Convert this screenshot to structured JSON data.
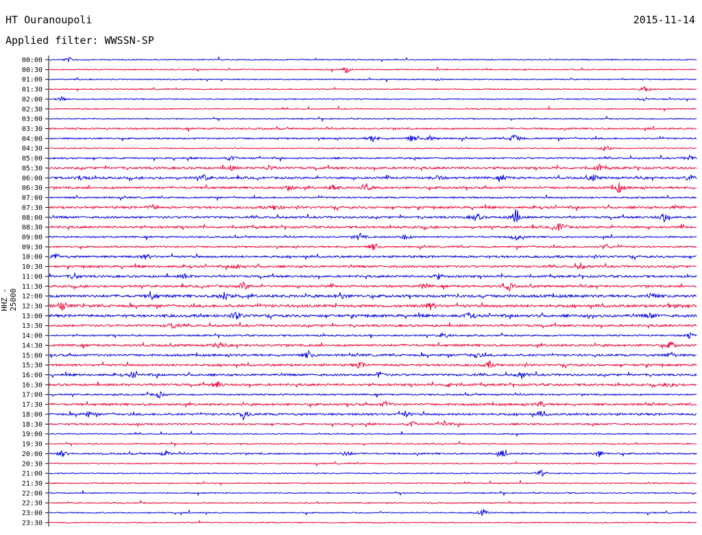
{
  "header": {
    "station": "HT Ouranoupoli",
    "date": "2015-11-14",
    "filter": "Applied filter: WWSSN-SP"
  },
  "colors": {
    "even_rows": "#0000dd",
    "odd_rows": "#ee0033"
  },
  "chart_data": {
    "type": "line",
    "ylabel": "HHZ - 25000",
    "row_labels": [
      "00:00",
      "00:30",
      "01:00",
      "01:30",
      "02:00",
      "02:30",
      "03:00",
      "03:30",
      "04:00",
      "04:30",
      "05:00",
      "05:30",
      "06:00",
      "06:30",
      "07:00",
      "07:30",
      "08:00",
      "08:30",
      "09:00",
      "09:30",
      "10:00",
      "10:30",
      "11:00",
      "11:30",
      "12:00",
      "12:30",
      "13:00",
      "13:30",
      "14:00",
      "14:30",
      "15:00",
      "15:30",
      "16:00",
      "16:30",
      "17:00",
      "17:30",
      "18:00",
      "18:30",
      "19:00",
      "19:30",
      "20:00",
      "20:30",
      "21:00",
      "21:30",
      "22:00",
      "22:30",
      "23:00",
      "23:30"
    ],
    "row_duration_minutes": 30,
    "row_activity": [
      1,
      1,
      1,
      1,
      1,
      1,
      1,
      2,
      2,
      1,
      2,
      3,
      3,
      3,
      2,
      3,
      3,
      3,
      2,
      2,
      3,
      3,
      3,
      3,
      4,
      4,
      4,
      3,
      2,
      3,
      3,
      3,
      3,
      3,
      2,
      3,
      3,
      2,
      1,
      1,
      2,
      1,
      1,
      1,
      1,
      1,
      1,
      1
    ],
    "events": [
      {
        "row": 0,
        "t": 0.03,
        "amp": 1.0
      },
      {
        "row": 1,
        "t": 0.46,
        "amp": 2.0
      },
      {
        "row": 2,
        "t": 0.6,
        "amp": 0.8
      },
      {
        "row": 3,
        "t": 0.92,
        "amp": 1.5
      },
      {
        "row": 4,
        "t": 0.02,
        "amp": 1.0
      },
      {
        "row": 4,
        "t": 0.92,
        "amp": 1.0
      },
      {
        "row": 8,
        "t": 0.5,
        "amp": 2.0
      },
      {
        "row": 8,
        "t": 0.56,
        "amp": 1.6
      },
      {
        "row": 8,
        "t": 0.59,
        "amp": 1.6
      },
      {
        "row": 8,
        "t": 0.72,
        "amp": 3.0
      },
      {
        "row": 9,
        "t": 0.86,
        "amp": 1.5
      },
      {
        "row": 10,
        "t": 0.28,
        "amp": 1.2
      },
      {
        "row": 10,
        "t": 0.99,
        "amp": 1.5
      },
      {
        "row": 11,
        "t": 0.28,
        "amp": 1.2
      },
      {
        "row": 11,
        "t": 0.34,
        "amp": 1.3
      },
      {
        "row": 11,
        "t": 0.85,
        "amp": 1.5
      },
      {
        "row": 12,
        "t": 0.05,
        "amp": 1.5
      },
      {
        "row": 12,
        "t": 0.24,
        "amp": 1.5
      },
      {
        "row": 12,
        "t": 0.6,
        "amp": 1.2
      },
      {
        "row": 12,
        "t": 0.7,
        "amp": 1.4
      },
      {
        "row": 12,
        "t": 0.84,
        "amp": 1.6
      },
      {
        "row": 12,
        "t": 0.99,
        "amp": 1.6
      },
      {
        "row": 13,
        "t": 0.37,
        "amp": 1.5
      },
      {
        "row": 13,
        "t": 0.44,
        "amp": 1.6
      },
      {
        "row": 13,
        "t": 0.49,
        "amp": 1.6
      },
      {
        "row": 13,
        "t": 0.88,
        "amp": 2.2
      },
      {
        "row": 15,
        "t": 0.16,
        "amp": 1.4
      },
      {
        "row": 15,
        "t": 0.35,
        "amp": 1.5
      },
      {
        "row": 15,
        "t": 0.97,
        "amp": 1.2
      },
      {
        "row": 16,
        "t": 0.66,
        "amp": 2.0
      },
      {
        "row": 16,
        "t": 0.72,
        "amp": 4.0
      },
      {
        "row": 16,
        "t": 0.95,
        "amp": 2.2
      },
      {
        "row": 17,
        "t": 0.79,
        "amp": 3.0
      },
      {
        "row": 18,
        "t": 0.48,
        "amp": 1.8
      },
      {
        "row": 18,
        "t": 0.55,
        "amp": 1.2
      },
      {
        "row": 18,
        "t": 0.72,
        "amp": 1.8
      },
      {
        "row": 19,
        "t": 0.5,
        "amp": 1.4
      },
      {
        "row": 19,
        "t": 0.86,
        "amp": 1.3
      },
      {
        "row": 20,
        "t": 0.01,
        "amp": 1.6
      },
      {
        "row": 20,
        "t": 0.15,
        "amp": 1.2
      },
      {
        "row": 21,
        "t": 0.29,
        "amp": 1.4
      },
      {
        "row": 21,
        "t": 0.82,
        "amp": 1.5
      },
      {
        "row": 22,
        "t": 0.04,
        "amp": 1.3
      },
      {
        "row": 22,
        "t": 0.21,
        "amp": 1.2
      },
      {
        "row": 22,
        "t": 0.6,
        "amp": 1.4
      },
      {
        "row": 23,
        "t": 0.3,
        "amp": 2.0
      },
      {
        "row": 23,
        "t": 0.58,
        "amp": 1.3
      },
      {
        "row": 23,
        "t": 0.71,
        "amp": 2.0
      },
      {
        "row": 24,
        "t": 0.16,
        "amp": 2.0
      },
      {
        "row": 24,
        "t": 0.27,
        "amp": 2.6
      },
      {
        "row": 24,
        "t": 0.45,
        "amp": 1.6
      },
      {
        "row": 24,
        "t": 0.93,
        "amp": 1.5
      },
      {
        "row": 25,
        "t": 0.02,
        "amp": 1.6
      },
      {
        "row": 25,
        "t": 0.59,
        "amp": 1.7
      },
      {
        "row": 25,
        "t": 0.96,
        "amp": 1.2
      },
      {
        "row": 26,
        "t": 0.29,
        "amp": 1.8
      },
      {
        "row": 26,
        "t": 0.65,
        "amp": 1.6
      },
      {
        "row": 26,
        "t": 0.93,
        "amp": 1.4
      },
      {
        "row": 27,
        "t": 0.19,
        "amp": 1.7
      },
      {
        "row": 28,
        "t": 0.61,
        "amp": 1.4
      },
      {
        "row": 28,
        "t": 0.99,
        "amp": 1.5
      },
      {
        "row": 29,
        "t": 0.26,
        "amp": 1.6
      },
      {
        "row": 29,
        "t": 0.96,
        "amp": 1.8
      },
      {
        "row": 30,
        "t": 0.4,
        "amp": 1.6
      },
      {
        "row": 30,
        "t": 0.66,
        "amp": 1.6
      },
      {
        "row": 30,
        "t": 0.96,
        "amp": 1.5
      },
      {
        "row": 31,
        "t": 0.48,
        "amp": 1.5
      },
      {
        "row": 31,
        "t": 0.68,
        "amp": 1.5
      },
      {
        "row": 32,
        "t": 0.13,
        "amp": 1.5
      },
      {
        "row": 32,
        "t": 0.51,
        "amp": 1.4
      },
      {
        "row": 32,
        "t": 0.73,
        "amp": 1.6
      },
      {
        "row": 33,
        "t": 0.26,
        "amp": 1.5
      },
      {
        "row": 33,
        "t": 0.62,
        "amp": 1.4
      },
      {
        "row": 33,
        "t": 0.96,
        "amp": 1.4
      },
      {
        "row": 34,
        "t": 0.17,
        "amp": 1.5
      },
      {
        "row": 35,
        "t": 0.52,
        "amp": 1.2
      },
      {
        "row": 35,
        "t": 0.76,
        "amp": 1.4
      },
      {
        "row": 36,
        "t": 0.06,
        "amp": 1.4
      },
      {
        "row": 36,
        "t": 0.3,
        "amp": 2.0
      },
      {
        "row": 36,
        "t": 0.55,
        "amp": 1.4
      },
      {
        "row": 36,
        "t": 0.76,
        "amp": 1.4
      },
      {
        "row": 37,
        "t": 0.56,
        "amp": 1.4
      },
      {
        "row": 37,
        "t": 0.61,
        "amp": 1.4
      },
      {
        "row": 40,
        "t": 0.02,
        "amp": 1.4
      },
      {
        "row": 40,
        "t": 0.18,
        "amp": 1.3
      },
      {
        "row": 40,
        "t": 0.46,
        "amp": 1.5
      },
      {
        "row": 40,
        "t": 0.7,
        "amp": 1.5
      },
      {
        "row": 40,
        "t": 0.85,
        "amp": 1.6
      },
      {
        "row": 42,
        "t": 0.76,
        "amp": 1.5
      },
      {
        "row": 46,
        "t": 0.67,
        "amp": 1.8
      }
    ]
  }
}
